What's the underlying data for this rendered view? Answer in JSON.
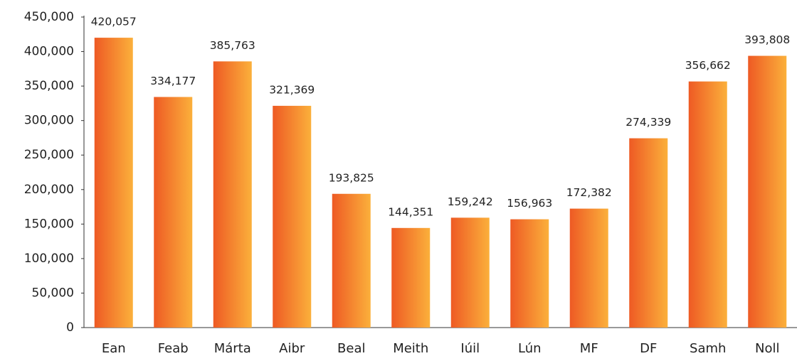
{
  "chart_data": {
    "type": "bar",
    "categories": [
      "Ean",
      "Feab",
      "Márta",
      "Aibr",
      "Beal",
      "Meith",
      "Iúil",
      "Lún",
      "MF",
      "DF",
      "Samh",
      "Noll"
    ],
    "values": [
      420057,
      334177,
      385763,
      321369,
      193825,
      144351,
      159242,
      156963,
      172382,
      274339,
      356662,
      393808
    ],
    "value_labels": [
      "420,057",
      "334,177",
      "385,763",
      "321,369",
      "193,825",
      "144,351",
      "159,242",
      "156,963",
      "172,382",
      "274,339",
      "356,662",
      "393,808"
    ],
    "color": [
      "#ee5a24",
      "#fbb03b"
    ],
    "ylim": [
      0,
      450000
    ],
    "yticks": [
      0,
      {
        "value": 50000,
        "label": "50,000"
      },
      {
        "value": 100000,
        "label": "100,000"
      },
      {
        "value": 150000,
        "label": "150,000"
      },
      {
        "value": 200000,
        "label": "200,000"
      },
      {
        "value": 250000,
        "label": "250,000"
      },
      {
        "value": 300000,
        "label": "300,000"
      },
      {
        "value": 350000,
        "label": "350,000"
      },
      {
        "value": 400000,
        "label": "400,000"
      },
      {
        "value": 450000,
        "label": "450,000"
      }
    ],
    "grid": false
  }
}
